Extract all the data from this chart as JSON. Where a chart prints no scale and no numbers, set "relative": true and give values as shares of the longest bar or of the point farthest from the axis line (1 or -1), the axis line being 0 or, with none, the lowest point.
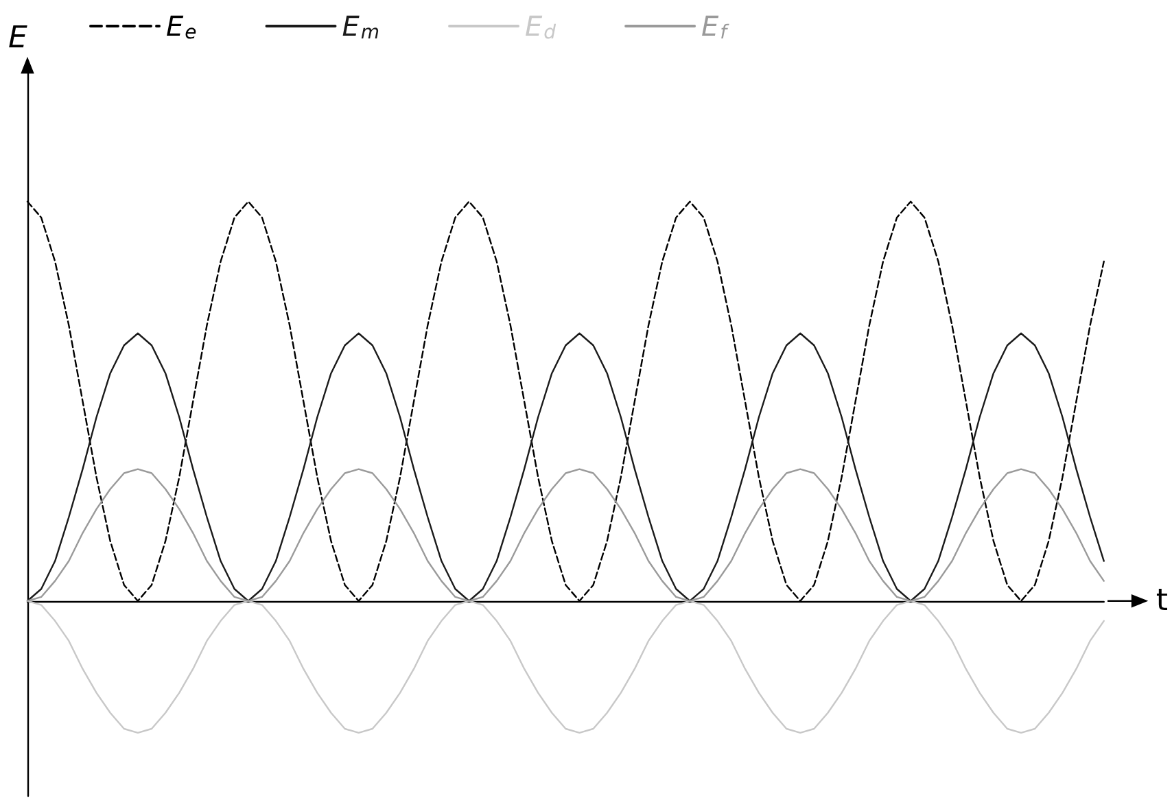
{
  "chart_data": {
    "type": "line",
    "relative": true,
    "xlabel": "t",
    "ylabel": "E",
    "legend": "top left",
    "grid": false,
    "marker": "none",
    "categories": [
      null,
      null,
      null,
      null,
      null,
      null,
      null,
      null,
      null,
      null,
      null,
      null,
      null,
      null,
      null,
      null,
      null,
      null,
      null,
      null,
      null,
      null,
      null,
      null,
      null,
      null,
      null,
      null,
      null,
      null,
      null,
      null,
      null,
      null,
      null,
      null,
      null,
      null,
      null,
      null,
      null,
      null,
      null,
      null,
      null,
      null,
      null,
      null,
      null,
      null,
      null,
      null,
      null,
      null,
      null,
      null,
      null,
      null,
      null,
      null,
      null,
      null,
      null,
      null,
      null,
      null,
      null,
      null,
      null,
      null,
      null,
      null,
      null,
      null,
      null,
      null,
      null,
      null,
      null
    ],
    "series": [
      {
        "name": "E$_{e}$",
        "color": "#000000",
        "line_style": "dashed",
        "values": [
          1,
          0.96,
          0.85,
          0.69,
          0.5,
          0.31,
          0.15,
          0.04,
          0,
          0.04,
          0.15,
          0.31,
          0.5,
          0.69,
          0.85,
          0.96,
          1,
          0.96,
          0.85,
          0.69,
          0.5,
          0.31,
          0.15,
          0.04,
          0,
          0.04,
          0.15,
          0.31,
          0.5,
          0.69,
          0.85,
          0.96,
          1,
          0.96,
          0.85,
          0.69,
          0.5,
          0.31,
          0.15,
          0.04,
          0,
          0.04,
          0.15,
          0.31,
          0.5,
          0.69,
          0.85,
          0.96,
          1,
          0.96,
          0.85,
          0.69,
          0.5,
          0.31,
          0.15,
          0.04,
          0,
          0.04,
          0.15,
          0.31,
          0.5,
          0.69,
          0.85,
          0.96,
          1,
          0.96,
          0.85,
          0.69,
          0.5,
          0.31,
          0.15,
          0.04,
          0,
          0.04,
          0.15,
          0.31,
          0.5,
          0.69,
          0.85
        ]
      },
      {
        "name": "E$_{m}$",
        "color": "#1a1a1a",
        "line_style": "solid",
        "values": [
          0,
          0.03,
          0.1,
          0.21,
          0.33,
          0.46,
          0.57,
          0.64,
          0.67,
          0.64,
          0.57,
          0.46,
          0.33,
          0.21,
          0.1,
          0.03,
          0,
          0.03,
          0.1,
          0.21,
          0.33,
          0.46,
          0.57,
          0.64,
          0.67,
          0.64,
          0.57,
          0.46,
          0.33,
          0.21,
          0.1,
          0.03,
          0,
          0.03,
          0.1,
          0.21,
          0.33,
          0.46,
          0.57,
          0.64,
          0.67,
          0.64,
          0.57,
          0.46,
          0.33,
          0.21,
          0.1,
          0.03,
          0,
          0.03,
          0.1,
          0.21,
          0.33,
          0.46,
          0.57,
          0.64,
          0.67,
          0.64,
          0.57,
          0.46,
          0.33,
          0.21,
          0.1,
          0.03,
          0,
          0.03,
          0.1,
          0.21,
          0.33,
          0.46,
          0.57,
          0.64,
          0.67,
          0.64,
          0.57,
          0.46,
          0.33,
          0.21,
          0.1
        ]
      },
      {
        "name": "E$_{d}$",
        "color": "#c8c8c8",
        "line_style": "solid",
        "values": [
          0,
          -0.01,
          -0.05,
          -0.1,
          -0.17,
          -0.23,
          -0.28,
          -0.32,
          -0.33,
          -0.32,
          -0.28,
          -0.23,
          -0.17,
          -0.1,
          -0.05,
          -0.01,
          0,
          -0.01,
          -0.05,
          -0.1,
          -0.17,
          -0.23,
          -0.28,
          -0.32,
          -0.33,
          -0.32,
          -0.28,
          -0.23,
          -0.17,
          -0.1,
          -0.05,
          -0.01,
          0,
          -0.01,
          -0.05,
          -0.1,
          -0.17,
          -0.23,
          -0.28,
          -0.32,
          -0.33,
          -0.32,
          -0.28,
          -0.23,
          -0.17,
          -0.1,
          -0.05,
          -0.01,
          0,
          -0.01,
          -0.05,
          -0.1,
          -0.17,
          -0.23,
          -0.28,
          -0.32,
          -0.33,
          -0.32,
          -0.28,
          -0.23,
          -0.17,
          -0.1,
          -0.05,
          -0.01,
          0,
          -0.01,
          -0.05,
          -0.1,
          -0.17,
          -0.23,
          -0.28,
          -0.32,
          -0.33,
          -0.32,
          -0.28,
          -0.23,
          -0.17,
          -0.1,
          -0.05
        ]
      },
      {
        "name": "E$_{f}$",
        "color": "#9a9a9a",
        "line_style": "solid",
        "values": [
          0,
          0.01,
          0.05,
          0.1,
          0.17,
          0.23,
          0.28,
          0.32,
          0.33,
          0.32,
          0.28,
          0.23,
          0.17,
          0.1,
          0.05,
          0.01,
          0,
          0.01,
          0.05,
          0.1,
          0.17,
          0.23,
          0.28,
          0.32,
          0.33,
          0.32,
          0.28,
          0.23,
          0.17,
          0.1,
          0.05,
          0.01,
          0,
          0.01,
          0.05,
          0.1,
          0.17,
          0.23,
          0.28,
          0.32,
          0.33,
          0.32,
          0.28,
          0.23,
          0.17,
          0.1,
          0.05,
          0.01,
          0,
          0.01,
          0.05,
          0.1,
          0.17,
          0.23,
          0.28,
          0.32,
          0.33,
          0.32,
          0.28,
          0.23,
          0.17,
          0.1,
          0.05,
          0.01,
          0,
          0.01,
          0.05,
          0.1,
          0.17,
          0.23,
          0.28,
          0.32,
          0.33,
          0.32,
          0.28,
          0.23,
          0.17,
          0.1,
          0.05
        ]
      }
    ]
  }
}
